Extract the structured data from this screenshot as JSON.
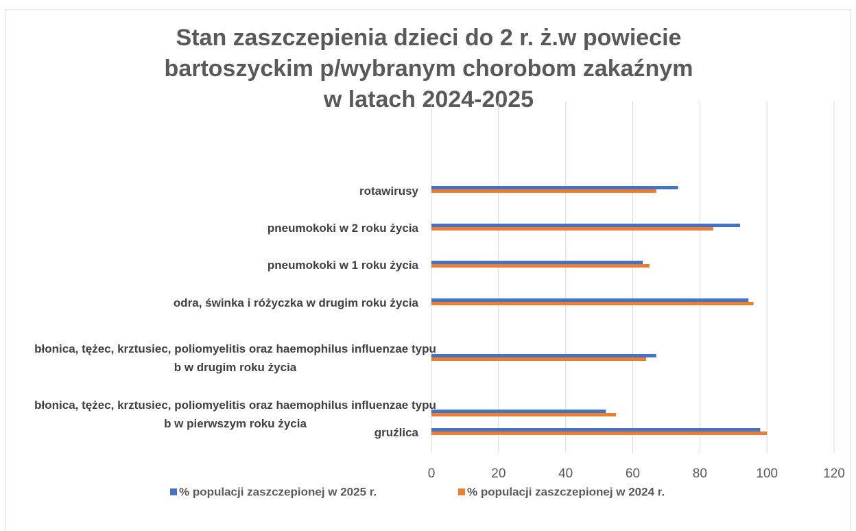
{
  "chart_data": {
    "type": "hbar",
    "title": [
      "Stan zaszczepienia dzieci do 2 r. ż.w powiecie",
      "bartoszyckim p/wybranym chorobom zakaźnym",
      "w latach 2024-2025"
    ],
    "categories": [
      "rotawirusy",
      "pneumokoki w 2 roku życia",
      "pneumokoki w 1 roku życia",
      "odra, świnka i różyczka w drugim roku życia",
      "błonica, tężec, krztusiec, poliomyelitis oraz haemophilus influenzae typu b w drugim roku życia",
      "błonica, tężec, krztusiec, poliomyelitis oraz haemophilus influenzae typu b w pierwszym roku życia",
      "gruźlica"
    ],
    "series": [
      {
        "name": "% populacji zaszczepionej w 2025 r.",
        "color": "#4472c4",
        "values": [
          73.5,
          92,
          63,
          94.5,
          67,
          52,
          98
        ]
      },
      {
        "name": "% populacji zaszczepionej w 2024 r.",
        "color": "#ed7d31",
        "values": [
          67,
          84,
          65,
          96,
          64,
          55,
          100
        ]
      }
    ],
    "xlim": [
      0,
      120
    ],
    "xticks": [
      0,
      20,
      40,
      60,
      80,
      100,
      120
    ],
    "grid": true,
    "legend": "bottom"
  }
}
